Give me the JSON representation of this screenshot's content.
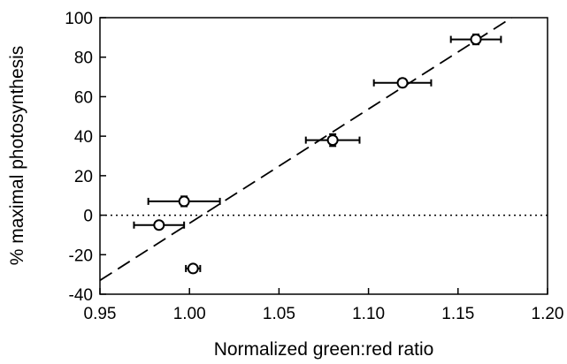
{
  "chart_data": {
    "type": "scatter",
    "title": "",
    "xlabel": "Normalized green:red ratio",
    "ylabel": "% maximal photosynthesis",
    "xlim": [
      0.95,
      1.2
    ],
    "ylim": [
      -40,
      100
    ],
    "xticks": [
      "0.95",
      "1.00",
      "1.05",
      "1.10",
      "1.15",
      "1.20"
    ],
    "yticks": [
      "-40",
      "-20",
      "0",
      "20",
      "40",
      "60",
      "80",
      "100"
    ],
    "grid": false,
    "legend": "none",
    "marker": "open-circle",
    "points": [
      {
        "x": 0.983,
        "y": -5,
        "xerr": 0.014,
        "yerr": 1.5
      },
      {
        "x": 0.997,
        "y": 7,
        "xerr": 0.02,
        "yerr": 2.5
      },
      {
        "x": 1.002,
        "y": -27,
        "xerr": 0.004,
        "yerr": 1.5
      },
      {
        "x": 1.08,
        "y": 38,
        "xerr": 0.015,
        "yerr": 3.0
      },
      {
        "x": 1.119,
        "y": 67,
        "xerr": 0.016,
        "yerr": 2.0
      },
      {
        "x": 1.16,
        "y": 89,
        "xerr": 0.014,
        "yerr": 2.5
      }
    ],
    "fit_line": {
      "style": "dashed",
      "x": [
        0.95,
        1.18
      ],
      "y": [
        -33,
        100
      ]
    },
    "reference_line": {
      "style": "dotted",
      "y": 0
    }
  }
}
